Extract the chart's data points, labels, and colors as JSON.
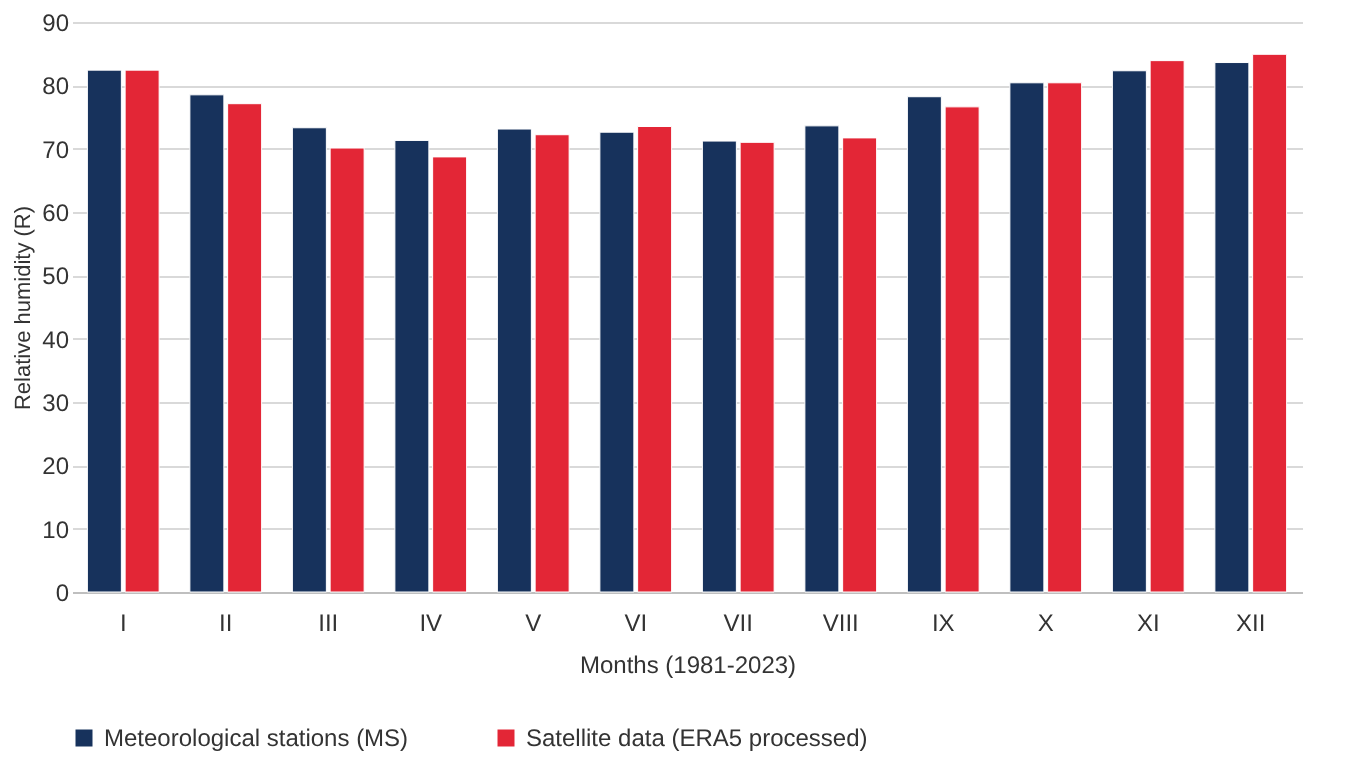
{
  "chart_data": {
    "type": "bar",
    "xlabel": "Months (1981-2023)",
    "ylabel": "Relative humidity (R)",
    "categories": [
      "I",
      "II",
      "III",
      "IV",
      "V",
      "VI",
      "VII",
      "VIII",
      "IX",
      "X",
      "XI",
      "XII"
    ],
    "series": [
      {
        "name": "Meteorological stations (MS)",
        "color": "#17325c",
        "values": [
          82.4,
          78.5,
          73.3,
          71.3,
          73.1,
          72.6,
          71.2,
          73.6,
          78.2,
          80.4,
          82.3,
          83.6
        ]
      },
      {
        "name": "Satellite data (ERA5 processed)",
        "color": "#e32636",
        "values": [
          82.4,
          77.1,
          70.1,
          68.7,
          72.2,
          73.5,
          71.0,
          71.7,
          76.6,
          80.4,
          83.9,
          84.9
        ]
      }
    ],
    "ylim": [
      0,
      90
    ],
    "yticks": [
      0,
      10,
      20,
      30,
      40,
      50,
      60,
      70,
      80,
      90
    ],
    "grid": "y",
    "legend": "bottom"
  }
}
